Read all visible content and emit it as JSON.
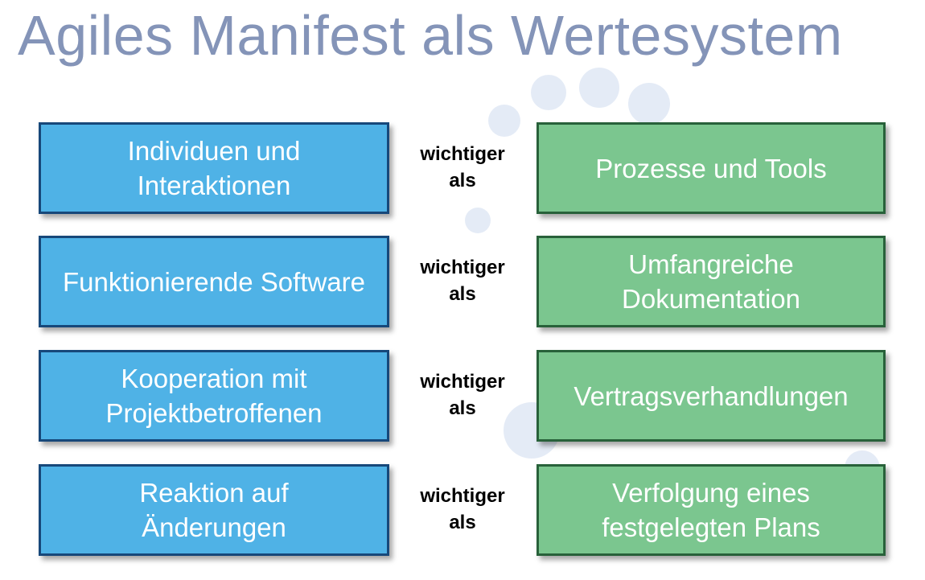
{
  "title": "Agiles Manifest als Wertesystem",
  "rows": [
    {
      "left": "Individuen und\nInteraktionen",
      "connector_1": "wichtiger",
      "connector_2": "als",
      "right": "Prozesse und Tools"
    },
    {
      "left": "Funktionierende Software",
      "connector_1": "wichtiger",
      "connector_2": "als",
      "right": "Umfangreiche\nDokumentation"
    },
    {
      "left": "Kooperation mit\nProjektbetroffenen",
      "connector_1": "wichtiger",
      "connector_2": "als",
      "right": "Vertragsverhandlungen"
    },
    {
      "left": "Reaktion auf\nÄnderungen",
      "connector_1": "wichtiger",
      "connector_2": "als",
      "right": "Verfolgung eines\nfestgelegten Plans"
    }
  ],
  "colors": {
    "title": "#8494b8",
    "left_fill": "#4fb2e6",
    "left_border": "#17487a",
    "right_fill": "#7bc68f",
    "right_border": "#28613a",
    "background_bubbles": "#dfe7f4"
  }
}
